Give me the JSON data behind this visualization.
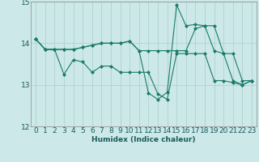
{
  "xlabel": "Humidex (Indice chaleur)",
  "x": [
    0,
    1,
    2,
    3,
    4,
    5,
    6,
    7,
    8,
    9,
    10,
    11,
    12,
    13,
    14,
    15,
    16,
    17,
    18,
    19,
    20,
    21,
    22,
    23
  ],
  "line1": [
    14.1,
    13.85,
    13.85,
    13.25,
    13.6,
    13.55,
    13.3,
    13.45,
    13.45,
    13.3,
    13.3,
    13.3,
    13.3,
    12.78,
    12.65,
    13.75,
    13.75,
    13.75,
    13.75,
    13.1,
    13.1,
    13.05,
    13.0,
    13.1
  ],
  "line2": [
    14.1,
    13.85,
    13.85,
    13.85,
    13.85,
    13.9,
    13.95,
    14.0,
    14.0,
    14.0,
    14.05,
    13.82,
    13.82,
    13.82,
    13.82,
    13.82,
    13.82,
    14.35,
    14.42,
    14.42,
    13.75,
    13.75,
    13.1,
    13.1
  ],
  "line3": [
    14.1,
    13.85,
    13.85,
    13.85,
    13.85,
    13.9,
    13.95,
    14.0,
    14.0,
    14.0,
    14.05,
    13.82,
    12.8,
    12.65,
    12.82,
    14.92,
    14.42,
    14.45,
    14.42,
    13.82,
    13.75,
    13.1,
    13.0,
    13.1
  ],
  "ylim": [
    12,
    15
  ],
  "yticks": [
    12,
    13,
    14,
    15
  ],
  "bg_color": "#cce8e8",
  "line_color": "#1a7a6a",
  "grid_color": "#aacece",
  "label_fontsize": 6.5,
  "tick_fontsize": 6.5
}
